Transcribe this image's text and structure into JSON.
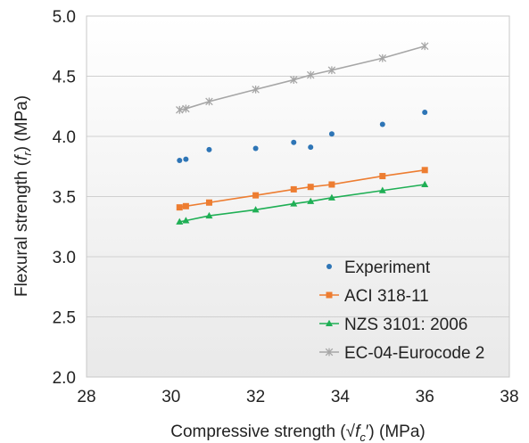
{
  "chart_data": {
    "type": "scatter",
    "title": "",
    "xlabel": "Compressive strength (√fc′)  (MPa)",
    "ylabel": "Flexural strength (fr) (MPa)",
    "xlim": [
      28,
      38
    ],
    "ylim": [
      2.0,
      5.0
    ],
    "x_ticks": [
      "28",
      "30",
      "32",
      "34",
      "36",
      "38"
    ],
    "y_ticks": [
      "2.0",
      "2.5",
      "3.0",
      "3.5",
      "4.0",
      "4.5",
      "5.0"
    ],
    "grid": "horizontal",
    "legend_position": "bottom-right",
    "series": [
      {
        "name": "Experiment",
        "marker": "circle",
        "line": false,
        "color": "#2E75B6",
        "x": [
          30.2,
          30.35,
          30.9,
          32.0,
          32.9,
          33.3,
          33.8,
          35.0,
          36.0
        ],
        "y": [
          3.8,
          3.81,
          3.89,
          3.9,
          3.95,
          3.91,
          4.02,
          4.1,
          4.2
        ]
      },
      {
        "name": "ACI 318-11",
        "marker": "square",
        "line": true,
        "color": "#ED7D31",
        "x": [
          30.2,
          30.35,
          30.9,
          32.0,
          32.9,
          33.3,
          33.8,
          35.0,
          36.0
        ],
        "y": [
          3.41,
          3.42,
          3.45,
          3.51,
          3.56,
          3.58,
          3.6,
          3.67,
          3.72
        ]
      },
      {
        "name": "NZS 3101: 2006",
        "marker": "triangle",
        "line": true,
        "color": "#1FAF55",
        "x": [
          30.2,
          30.35,
          30.9,
          32.0,
          32.9,
          33.3,
          33.8,
          35.0,
          36.0
        ],
        "y": [
          3.29,
          3.3,
          3.34,
          3.39,
          3.44,
          3.46,
          3.49,
          3.55,
          3.6
        ]
      },
      {
        "name": "EC-04-Eurocode 2",
        "marker": "star",
        "line": true,
        "color": "#A6A6A6",
        "x": [
          30.2,
          30.35,
          30.9,
          32.0,
          32.9,
          33.3,
          33.8,
          35.0,
          36.0
        ],
        "y": [
          4.22,
          4.23,
          4.29,
          4.39,
          4.47,
          4.51,
          4.55,
          4.65,
          4.75
        ]
      }
    ]
  }
}
